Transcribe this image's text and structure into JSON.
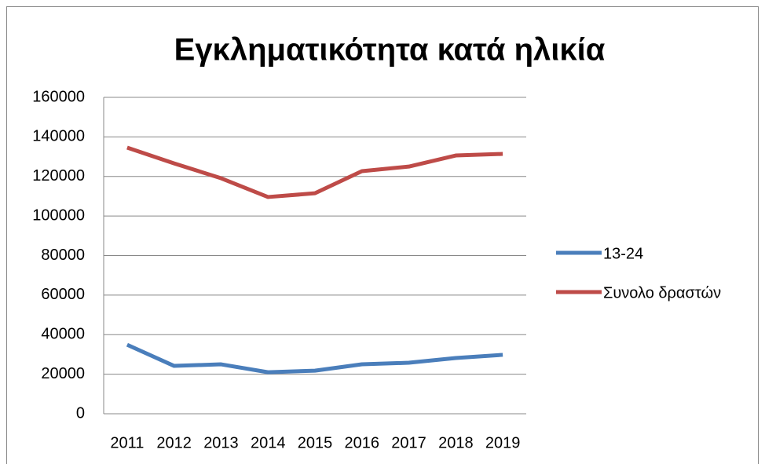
{
  "chart_data": {
    "type": "line",
    "title": "Εγκληματικότητα κατά ηλικία",
    "categories": [
      "2011",
      "2012",
      "2013",
      "2014",
      "2015",
      "2016",
      "2017",
      "2018",
      "2019"
    ],
    "series": [
      {
        "name": "13-24",
        "color": "#4a7ebb",
        "values": [
          34900,
          24200,
          25000,
          21000,
          21800,
          25000,
          25800,
          28200,
          29800
        ]
      },
      {
        "name": "Συνολο δραστών",
        "color": "#be4b48",
        "values": [
          134600,
          126600,
          119100,
          109600,
          111500,
          122700,
          125000,
          130600,
          131400
        ]
      }
    ],
    "ylim": [
      0,
      160000
    ],
    "yticks": [
      0,
      20000,
      40000,
      60000,
      80000,
      100000,
      120000,
      140000,
      160000
    ],
    "grid": true,
    "legend": "right"
  }
}
